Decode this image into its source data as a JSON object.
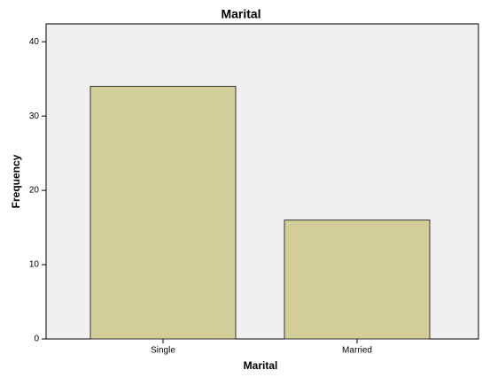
{
  "chart_data": {
    "type": "bar",
    "title": "Marital",
    "x_label": "Marital",
    "y_label": "Frequency",
    "categories": [
      "Single",
      "Married"
    ],
    "values": [
      34,
      16
    ],
    "color": "#d3ce97",
    "ylim": [
      0,
      42.4
    ],
    "yticks": [
      0,
      10,
      20,
      30,
      40
    ]
  }
}
